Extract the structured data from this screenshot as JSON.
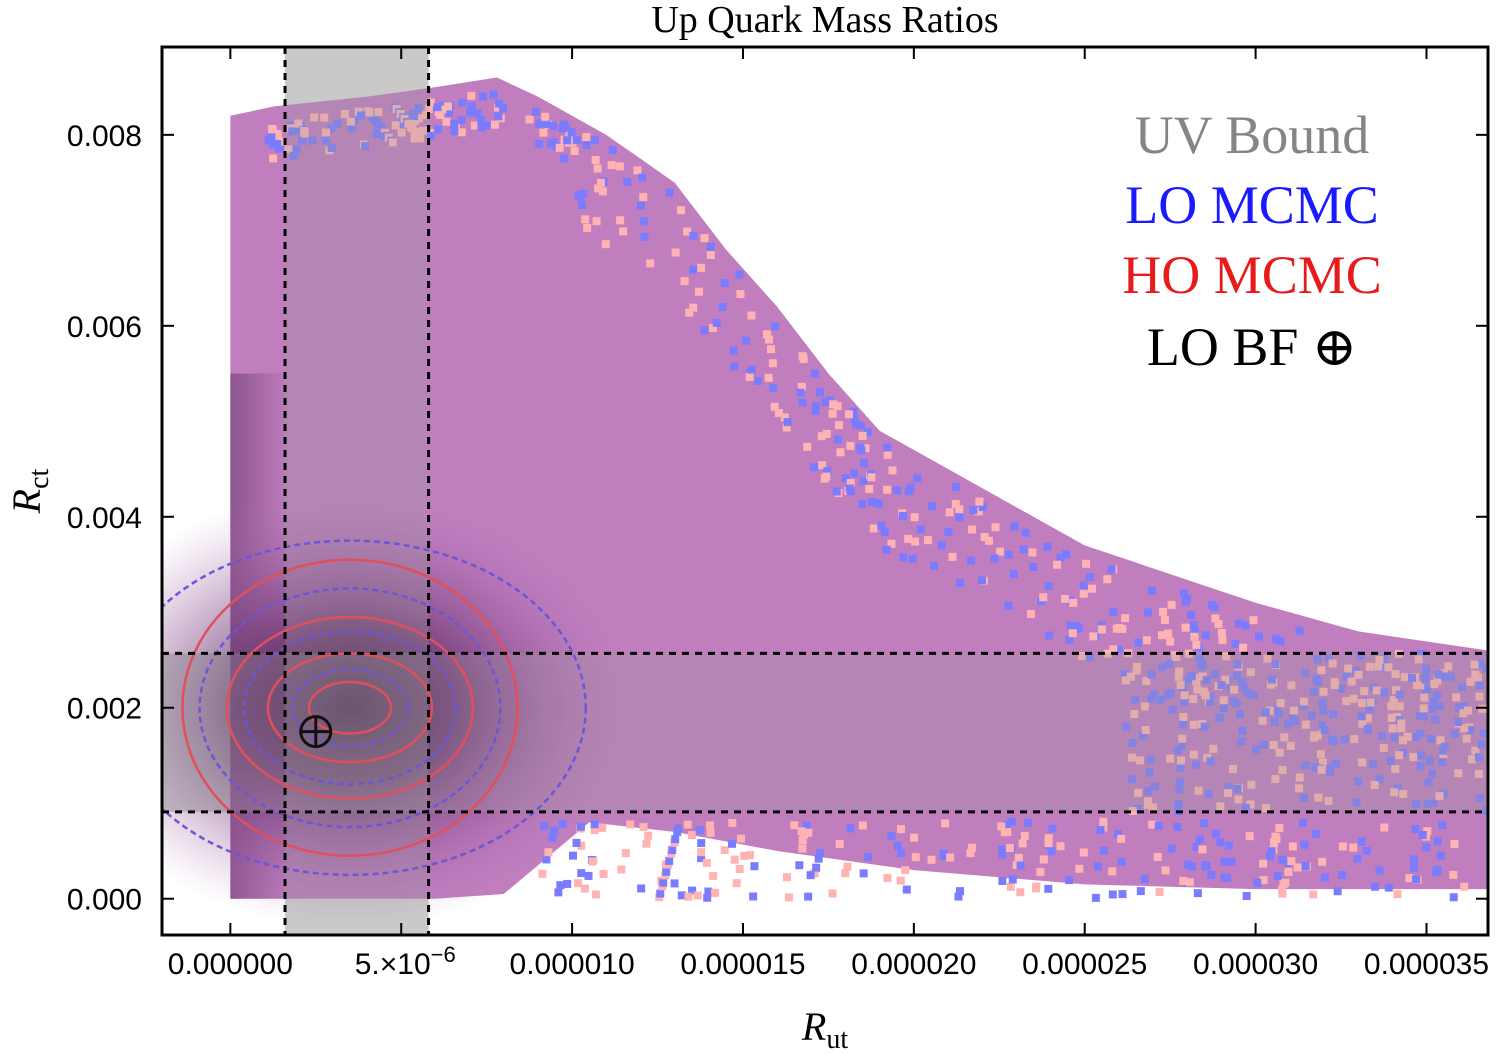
{
  "chart_data": {
    "type": "heatmap",
    "title": "Up Quark Mass Ratios",
    "xlabel": {
      "base": "R",
      "sub": "ut"
    },
    "ylabel": {
      "base": "R",
      "sub": "ct"
    },
    "xlim": [
      -2e-06,
      3.68e-05
    ],
    "ylim": [
      -0.00038,
      0.00892
    ],
    "x_ticks": [
      {
        "value": 0.0,
        "label": "0.000000"
      },
      {
        "value": 5e-06,
        "label": "5.×10",
        "exp": "−6"
      },
      {
        "value": 1e-05,
        "label": "0.000010"
      },
      {
        "value": 1.5e-05,
        "label": "0.000015"
      },
      {
        "value": 2e-05,
        "label": "0.000020"
      },
      {
        "value": 2.5e-05,
        "label": "0.000025"
      },
      {
        "value": 3e-05,
        "label": "0.000030"
      },
      {
        "value": 3.5e-05,
        "label": "0.000035"
      }
    ],
    "y_ticks": [
      {
        "value": 0.0,
        "label": "0.000"
      },
      {
        "value": 0.002,
        "label": "0.002"
      },
      {
        "value": 0.004,
        "label": "0.004"
      },
      {
        "value": 0.006,
        "label": "0.006"
      },
      {
        "value": 0.008,
        "label": "0.008"
      }
    ],
    "uv_bound": {
      "x_range": [
        1.6e-06,
        5.8e-06
      ],
      "y_range": [
        0.00091,
        0.00257
      ]
    },
    "density_envelope": [
      [
        0.0,
        0.0082
      ],
      [
        1.3e-06,
        0.0083
      ],
      [
        4e-06,
        0.0084
      ],
      [
        6e-06,
        0.0085
      ],
      [
        7.8e-06,
        0.0086
      ],
      [
        9e-06,
        0.0084
      ],
      [
        1.1e-05,
        0.008
      ],
      [
        1.3e-05,
        0.0075
      ],
      [
        1.45e-05,
        0.0068
      ],
      [
        1.6e-05,
        0.0062
      ],
      [
        1.75e-05,
        0.0055
      ],
      [
        1.9e-05,
        0.0049
      ],
      [
        2.1e-05,
        0.0045
      ],
      [
        2.3e-05,
        0.0041
      ],
      [
        2.5e-05,
        0.0037
      ],
      [
        2.75e-05,
        0.0034
      ],
      [
        3e-05,
        0.0031
      ],
      [
        3.3e-05,
        0.0028
      ],
      [
        3.68e-05,
        0.0026
      ],
      [
        3.68e-05,
        0.0001
      ],
      [
        3e-05,
        0.0001
      ],
      [
        2.5e-05,
        0.00015
      ],
      [
        2e-05,
        0.0003
      ],
      [
        1.6e-05,
        0.0005
      ],
      [
        1.3e-05,
        0.0007
      ],
      [
        1.05e-05,
        0.0008
      ],
      [
        8e-06,
        5e-05
      ],
      [
        6e-06,
        0.0
      ],
      [
        0.0,
        0.0
      ]
    ],
    "density_peak": {
      "x": 3.5e-06,
      "y": 0.002
    },
    "contours": {
      "HO MCMC": [
        {
          "rx": 1.2e-06,
          "ry": 0.00027
        },
        {
          "rx": 2.4e-06,
          "ry": 0.00057
        },
        {
          "rx": 3.6e-06,
          "ry": 0.00095
        },
        {
          "rx": 4.9e-06,
          "ry": 0.00155
        }
      ],
      "LO MCMC": [
        {
          "rx": 1.7e-06,
          "ry": 0.0004
        },
        {
          "rx": 3.1e-06,
          "ry": 0.0008
        },
        {
          "rx": 4.4e-06,
          "ry": 0.00125
        },
        {
          "rx": 6.9e-06,
          "ry": 0.00175
        }
      ]
    },
    "best_fit": {
      "name": "LO BF",
      "x": 2.5e-06,
      "y": 0.00175,
      "marker": "⊕"
    },
    "legend": {
      "position": "top-right",
      "entries": [
        {
          "label": "UV Bound",
          "color": "#858585"
        },
        {
          "label": "LO MCMC",
          "color": "#1a1aff"
        },
        {
          "label": "HO MCMC",
          "color": "#e81a1a"
        },
        {
          "label": "LO BF ⊕",
          "color": "#000000"
        }
      ]
    },
    "colors": {
      "density_fill": "#c07ebf",
      "density_core": "#3a1240",
      "lo_scatter": "#7b7bff",
      "ho_scatter": "#ffb3b3",
      "uv_band": "#dcdcdc",
      "ho_contour": "#e0505a",
      "lo_contour": "#6b55d8"
    }
  }
}
